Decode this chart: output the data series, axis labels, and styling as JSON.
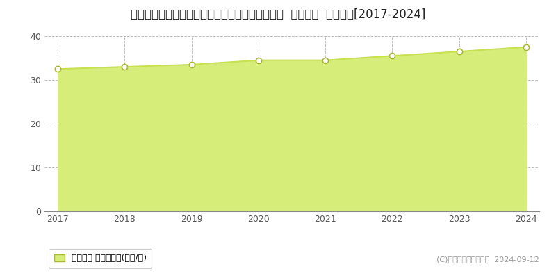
{
  "title": "新潟県新潟市中央区弁天橋通３丁目８５６番１外  地価公示  地価推移[2017-2024]",
  "years": [
    2017,
    2018,
    2019,
    2020,
    2021,
    2022,
    2023,
    2024
  ],
  "values": [
    32.5,
    33.0,
    33.5,
    34.5,
    34.5,
    35.5,
    36.5,
    37.5
  ],
  "line_color": "#c8e052",
  "fill_color": "#d6ed7a",
  "marker_color": "#ffffff",
  "marker_edge_color": "#aab830",
  "grid_color": "#bbbbbb",
  "background_color": "#ffffff",
  "ylim": [
    0,
    40
  ],
  "yticks": [
    0,
    10,
    20,
    30,
    40
  ],
  "legend_label": "地価公示 平均坪単価(万円/坪)",
  "copyright_text": "(C)土地価格ドットコム  2024-09-12",
  "title_fontsize": 12,
  "axis_fontsize": 9,
  "legend_fontsize": 9,
  "copyright_fontsize": 8
}
